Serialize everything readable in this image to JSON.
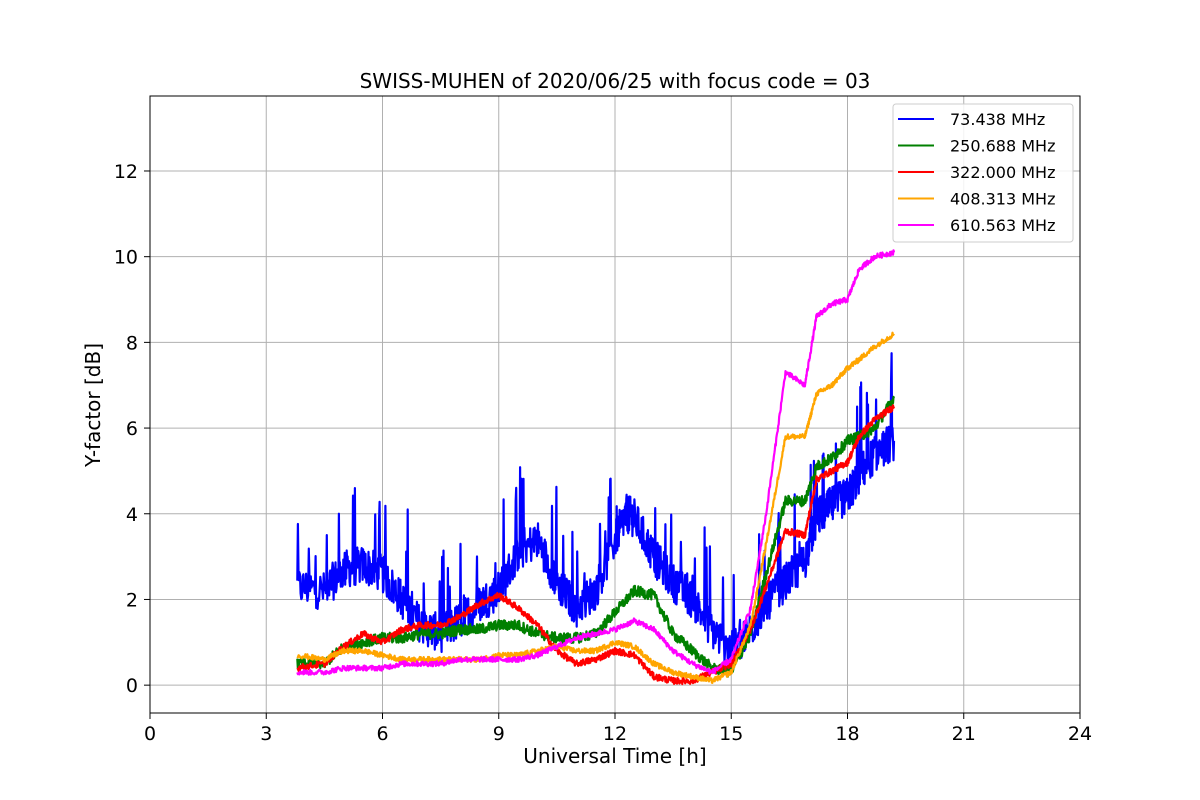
{
  "chart_data": {
    "type": "line",
    "title": "SWISS-MUHEN of 2020/06/25 with focus code = 03",
    "xlabel": "Universal Time [h]",
    "ylabel": "Y-factor [dB]",
    "xlim": [
      0,
      24
    ],
    "ylim": [
      -0.65,
      13.75
    ],
    "xticks": [
      0,
      3,
      6,
      9,
      12,
      15,
      18,
      21,
      24
    ],
    "yticks": [
      0,
      2,
      4,
      6,
      8,
      10,
      12
    ],
    "grid": true,
    "legend_position": "top-right",
    "series": [
      {
        "name": " 73.438 MHz",
        "color": "#0000ff",
        "noise": 0.9,
        "x": [
          3.8,
          4.5,
          5.0,
          5.5,
          6.0,
          6.5,
          7.0,
          7.5,
          8.0,
          8.5,
          9.0,
          9.5,
          10.0,
          10.5,
          11.0,
          11.5,
          12.0,
          12.3,
          12.5,
          13.0,
          13.5,
          14.0,
          14.5,
          15.0,
          15.5,
          15.9,
          16.4,
          16.9,
          17.2,
          17.6,
          18.0,
          18.3,
          18.7,
          19.2
        ],
        "y": [
          2.3,
          2.2,
          2.7,
          2.8,
          2.6,
          2.0,
          1.4,
          1.2,
          1.5,
          1.9,
          2.2,
          3.1,
          3.4,
          2.4,
          1.8,
          2.2,
          3.4,
          4.0,
          3.9,
          3.0,
          2.4,
          2.0,
          1.3,
          0.8,
          1.3,
          1.9,
          2.4,
          2.9,
          3.9,
          4.2,
          4.4,
          4.9,
          5.4,
          5.7
        ]
      },
      {
        "name": "250.688 MHz",
        "color": "#008000",
        "noise": 0.25,
        "x": [
          3.8,
          4.5,
          5.0,
          5.5,
          6.0,
          6.5,
          7.0,
          7.5,
          8.0,
          8.5,
          9.0,
          9.5,
          10.0,
          10.5,
          11.0,
          11.5,
          12.0,
          12.5,
          13.0,
          13.5,
          14.0,
          14.5,
          15.0,
          15.5,
          15.9,
          16.4,
          16.9,
          17.2,
          17.6,
          18.0,
          18.3,
          18.7,
          19.2
        ],
        "y": [
          0.5,
          0.5,
          0.9,
          1.0,
          1.1,
          1.1,
          1.2,
          1.2,
          1.3,
          1.3,
          1.4,
          1.4,
          1.2,
          1.1,
          1.1,
          1.2,
          1.7,
          2.2,
          2.1,
          1.2,
          0.8,
          0.4,
          0.3,
          1.2,
          2.6,
          4.3,
          4.3,
          5.1,
          5.3,
          5.7,
          5.8,
          6.0,
          6.7
        ]
      },
      {
        "name": "322.000 MHz",
        "color": "#ff0000",
        "noise": 0.15,
        "x": [
          3.8,
          4.5,
          5.0,
          5.5,
          6.0,
          6.5,
          7.0,
          7.5,
          8.0,
          8.5,
          9.0,
          9.5,
          10.0,
          10.5,
          11.0,
          11.5,
          12.0,
          12.5,
          13.0,
          13.5,
          14.0,
          14.5,
          15.0,
          15.5,
          15.9,
          16.4,
          16.9,
          17.2,
          17.6,
          18.0,
          18.3,
          18.7,
          19.2
        ],
        "y": [
          0.4,
          0.5,
          0.9,
          1.2,
          1.0,
          1.3,
          1.4,
          1.4,
          1.6,
          1.9,
          2.1,
          1.8,
          1.4,
          0.8,
          0.5,
          0.6,
          0.8,
          0.7,
          0.2,
          0.1,
          0.1,
          0.3,
          0.5,
          1.3,
          2.3,
          3.6,
          3.5,
          4.8,
          5.0,
          5.2,
          5.8,
          6.2,
          6.5
        ]
      },
      {
        "name": "408.313 MHz",
        "color": "#ffa500",
        "noise": 0.12,
        "x": [
          3.8,
          4.5,
          5.0,
          5.5,
          6.0,
          6.5,
          7.0,
          7.5,
          8.0,
          8.5,
          9.0,
          9.5,
          10.0,
          10.5,
          11.0,
          11.5,
          12.0,
          12.5,
          13.0,
          13.5,
          14.0,
          14.5,
          15.0,
          15.5,
          15.9,
          16.4,
          16.9,
          17.2,
          17.6,
          18.0,
          18.3,
          18.7,
          19.2
        ],
        "y": [
          0.7,
          0.6,
          0.8,
          0.8,
          0.7,
          0.6,
          0.6,
          0.6,
          0.6,
          0.6,
          0.7,
          0.7,
          0.8,
          0.9,
          0.8,
          0.8,
          1.0,
          0.9,
          0.5,
          0.3,
          0.2,
          0.1,
          0.3,
          1.4,
          3.3,
          5.8,
          5.8,
          6.8,
          7.0,
          7.4,
          7.6,
          7.9,
          8.2
        ]
      },
      {
        "name": "610.563 MHz",
        "color": "#ff00ff",
        "noise": 0.12,
        "x": [
          3.8,
          4.5,
          5.0,
          5.5,
          6.0,
          6.5,
          7.0,
          7.5,
          8.0,
          8.5,
          9.0,
          9.5,
          10.0,
          10.5,
          11.0,
          11.5,
          12.0,
          12.5,
          13.0,
          13.5,
          14.0,
          14.5,
          15.0,
          15.5,
          15.9,
          16.4,
          16.9,
          17.2,
          17.6,
          18.0,
          18.3,
          18.7,
          19.2
        ],
        "y": [
          0.3,
          0.3,
          0.4,
          0.4,
          0.4,
          0.5,
          0.5,
          0.5,
          0.6,
          0.6,
          0.6,
          0.6,
          0.7,
          0.9,
          1.1,
          1.2,
          1.3,
          1.5,
          1.3,
          0.8,
          0.5,
          0.3,
          0.6,
          1.8,
          4.0,
          7.3,
          7.0,
          8.6,
          8.9,
          9.0,
          9.7,
          10.0,
          10.1
        ]
      }
    ]
  }
}
